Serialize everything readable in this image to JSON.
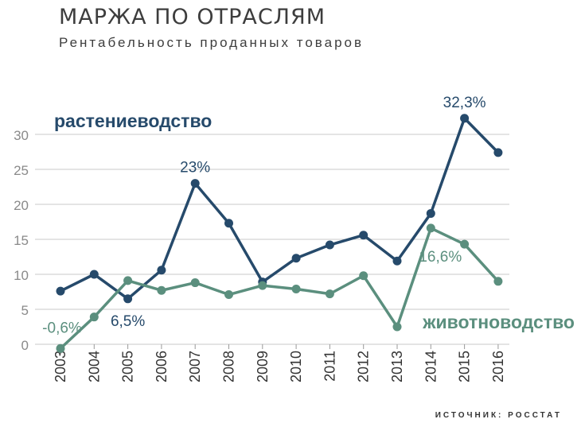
{
  "header": {
    "title": "МАРЖА ПО ОТРАСЛЯМ",
    "subtitle": "Рентабельность проданных товаров"
  },
  "source": "ИСТОЧНИК: РОССТАТ",
  "chart_data": {
    "type": "line",
    "title": "МАРЖА ПО ОТРАСЛЯМ",
    "subtitle": "Рентабельность проданных товаров",
    "x": [
      "2003",
      "2004",
      "2005",
      "2006",
      "2007",
      "2008",
      "2009",
      "2010",
      "2011",
      "2012",
      "2013",
      "2014",
      "2015",
      "2016"
    ],
    "ylim": [
      0,
      30
    ],
    "yticks": [
      "0",
      "5",
      "10",
      "15",
      "20",
      "25",
      "30"
    ],
    "grid": true,
    "series": [
      {
        "name": "растениеводство",
        "color": "#264a6b",
        "values": [
          7.6,
          10.0,
          6.5,
          10.6,
          23.0,
          17.3,
          8.9,
          12.3,
          14.2,
          15.6,
          11.9,
          18.7,
          32.3,
          27.4
        ]
      },
      {
        "name": "животноводство",
        "color": "#5b8f7e",
        "values": [
          -0.6,
          3.9,
          9.1,
          7.7,
          8.8,
          7.1,
          8.4,
          7.9,
          7.2,
          9.8,
          2.5,
          16.6,
          14.3,
          9.0
        ]
      }
    ],
    "annotations": [
      {
        "series": 0,
        "index": 4,
        "text": "23%"
      },
      {
        "series": 0,
        "index": 12,
        "text": "32,3%"
      },
      {
        "series": 0,
        "index": 2,
        "text": "6,5%"
      },
      {
        "series": 1,
        "index": 0,
        "text": "-0,6%"
      },
      {
        "series": 1,
        "index": 11,
        "text": "16,6%"
      }
    ]
  }
}
